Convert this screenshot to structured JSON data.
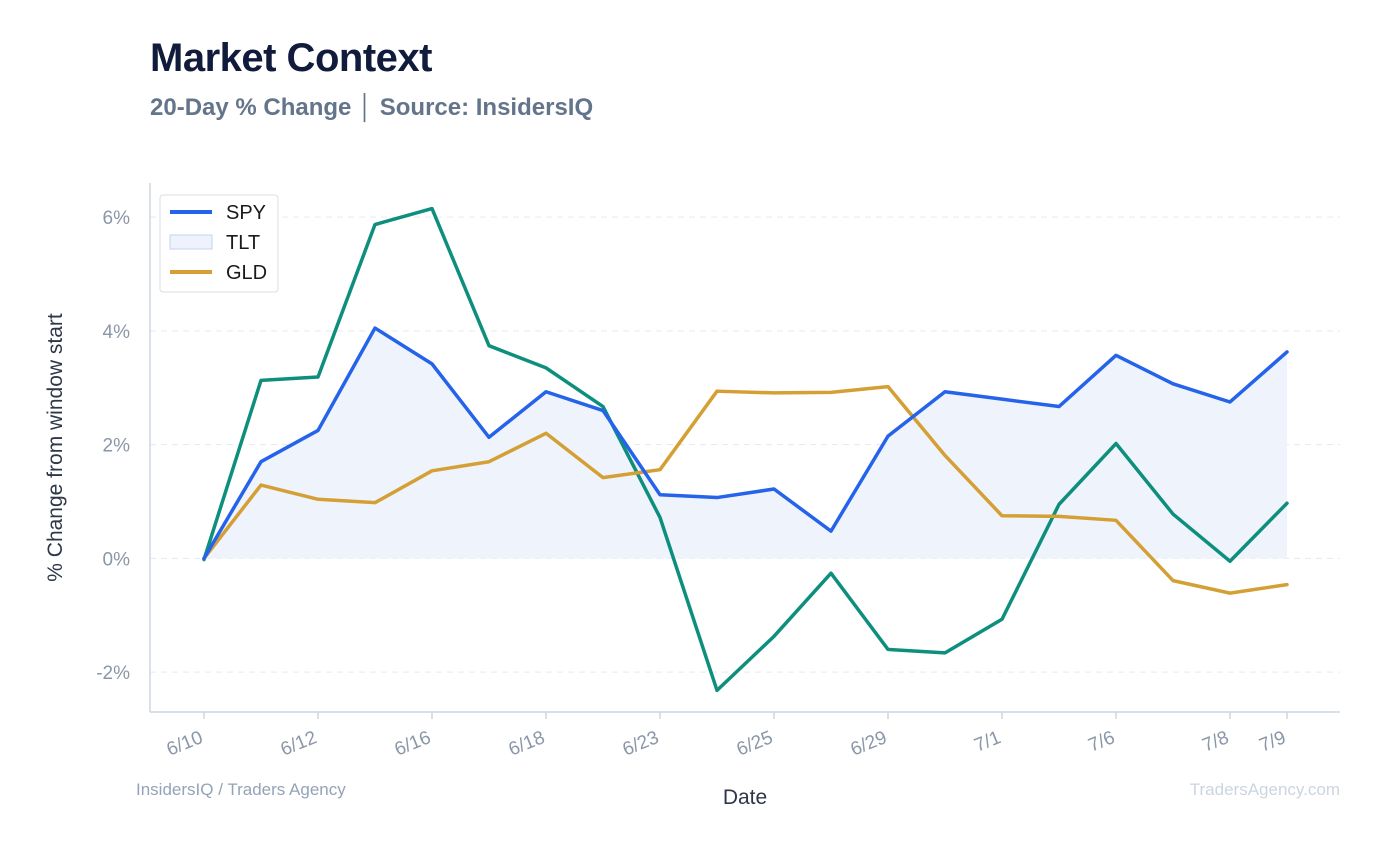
{
  "header": {
    "title": "Market Context",
    "subtitle": "20-Day % Change │ Source: InsidersIQ"
  },
  "footer": {
    "left": "InsidersIQ / Traders Agency",
    "right": "TradersAgency.com"
  },
  "colors": {
    "SPY": "#2563eb",
    "TLT": "#0e8f7e",
    "GLD": "#d4a035",
    "area_fill": "#eef2fc",
    "grid": "#e5e9f0",
    "axis": "#cbd5e1",
    "tick_text": "#8a97a8",
    "label_text": "#2d3748"
  },
  "chart_data": {
    "type": "line",
    "xlabel": "Date",
    "ylabel": "% Change from window start",
    "ylim": [
      -2.7,
      6.6
    ],
    "y_ticks": [
      -2,
      0,
      2,
      4,
      6
    ],
    "y_tick_labels": [
      "-2%",
      "0%",
      "2%",
      "4%",
      "6%"
    ],
    "x_tick_indices": [
      0,
      2,
      4,
      6,
      8,
      10,
      12,
      14,
      16,
      18,
      19
    ],
    "x_tick_labels": [
      "6/10",
      "6/12",
      "6/16",
      "6/18",
      "6/23",
      "6/25",
      "6/29",
      "7/1",
      "7/6",
      "7/8",
      "7/9"
    ],
    "grid": true,
    "legend_position": "top-left",
    "legend": [
      {
        "name": "SPY",
        "kind": "line"
      },
      {
        "name": "TLT",
        "kind": "area"
      },
      {
        "name": "GLD",
        "kind": "line"
      }
    ],
    "series": [
      {
        "name": "SPY",
        "values": [
          0.0,
          1.7,
          2.25,
          4.05,
          3.42,
          2.13,
          2.93,
          2.6,
          1.12,
          1.07,
          1.22,
          0.48,
          2.15,
          2.93,
          2.8,
          2.67,
          3.57,
          3.07,
          2.75,
          3.63
        ]
      },
      {
        "name": "TLT",
        "values": [
          -0.02,
          3.13,
          3.19,
          5.87,
          6.15,
          3.74,
          3.35,
          2.67,
          0.72,
          -2.32,
          -1.37,
          -0.26,
          -1.6,
          -1.66,
          -1.07,
          0.95,
          2.02,
          0.78,
          -0.05,
          0.97
        ]
      },
      {
        "name": "GLD",
        "values": [
          0.0,
          1.29,
          1.04,
          0.98,
          1.54,
          1.7,
          2.2,
          1.42,
          1.56,
          2.94,
          2.91,
          2.92,
          3.02,
          1.81,
          0.75,
          0.74,
          0.67,
          -0.39,
          -0.61,
          -0.46
        ]
      }
    ]
  }
}
